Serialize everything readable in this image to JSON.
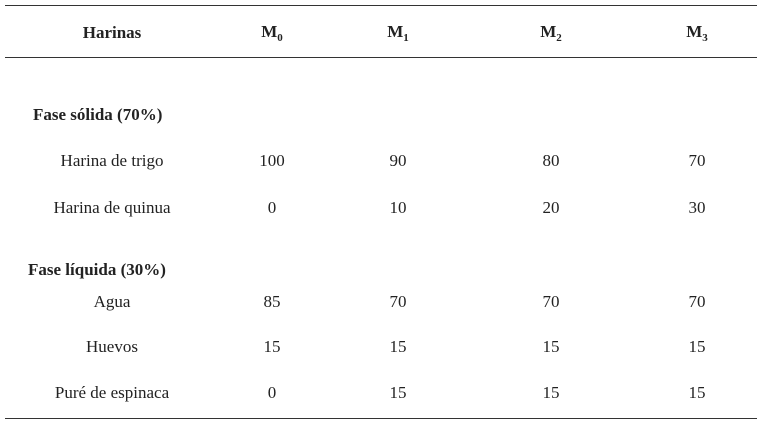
{
  "header": {
    "label": "Harinas",
    "columns": [
      {
        "base": "M",
        "sub": "0"
      },
      {
        "base": "M",
        "sub": "1"
      },
      {
        "base": "M",
        "sub": "2"
      },
      {
        "base": "M",
        "sub": "3"
      }
    ]
  },
  "sections": [
    {
      "title": "Fase sólida (70%)",
      "rows": [
        {
          "label": "Harina de trigo",
          "values": [
            100,
            90,
            80,
            70
          ]
        },
        {
          "label": "Harina de quinua",
          "values": [
            0,
            10,
            20,
            30
          ]
        }
      ]
    },
    {
      "title": "Fase líquida (30%)",
      "rows": [
        {
          "label": "Agua",
          "values": [
            85,
            70,
            70,
            70
          ]
        },
        {
          "label": "Huevos",
          "values": [
            15,
            15,
            15,
            15
          ]
        },
        {
          "label": "Puré de espinaca",
          "values": [
            0,
            15,
            15,
            15
          ]
        }
      ]
    }
  ]
}
